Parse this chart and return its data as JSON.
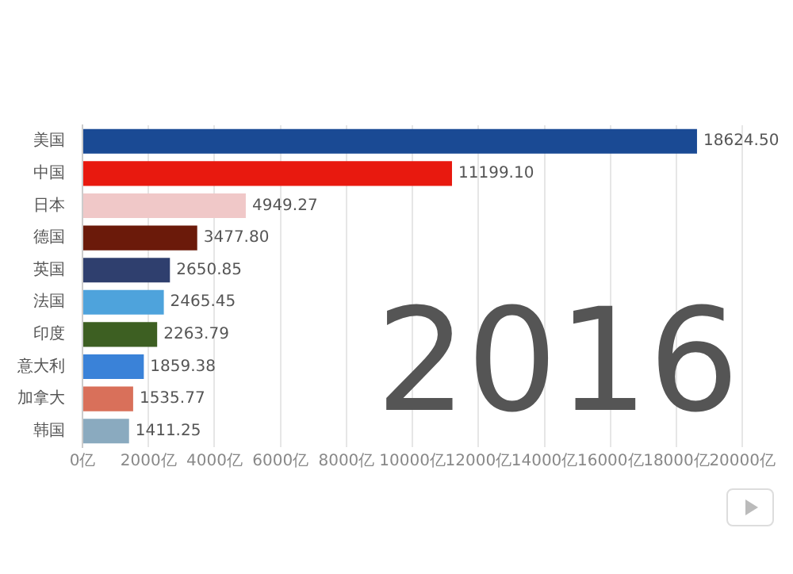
{
  "chart_data": {
    "type": "bar",
    "orientation": "horizontal",
    "categories": [
      "美国",
      "中国",
      "日本",
      "德国",
      "英国",
      "法国",
      "印度",
      "意大利",
      "加拿大",
      "韩国"
    ],
    "values": [
      18624.5,
      11199.1,
      4949.27,
      3477.8,
      2650.85,
      2465.45,
      2263.79,
      1859.38,
      1535.77,
      1411.25
    ],
    "value_labels": [
      "18624.50",
      "11199.10",
      "4949.27",
      "3477.80",
      "2650.85",
      "2465.45",
      "2263.79",
      "1859.38",
      "1535.77",
      "1411.25"
    ],
    "colors": [
      "#1a4a94",
      "#e8190f",
      "#f0c8c8",
      "#6b1a0a",
      "#2f3f6e",
      "#4ea3dc",
      "#3d5f22",
      "#3a82d8",
      "#d9705a",
      "#8aaabf"
    ],
    "xlim": [
      0,
      20000
    ],
    "xticks": [
      {
        "value": 0,
        "label": "0亿"
      },
      {
        "value": 2000,
        "label": "2000亿"
      },
      {
        "value": 4000,
        "label": "4000亿"
      },
      {
        "value": 6000,
        "label": "6000亿"
      },
      {
        "value": 8000,
        "label": "8000亿"
      },
      {
        "value": 10000,
        "label": "10000亿"
      },
      {
        "value": 12000,
        "label": "12000亿"
      },
      {
        "value": 14000,
        "label": "14000亿"
      },
      {
        "value": 16000,
        "label": "16000亿"
      },
      {
        "value": 18000,
        "label": "18000亿"
      },
      {
        "value": 20000,
        "label": "20000亿"
      }
    ],
    "grid": "x",
    "legend": false,
    "annotations": [
      "2016"
    ]
  }
}
